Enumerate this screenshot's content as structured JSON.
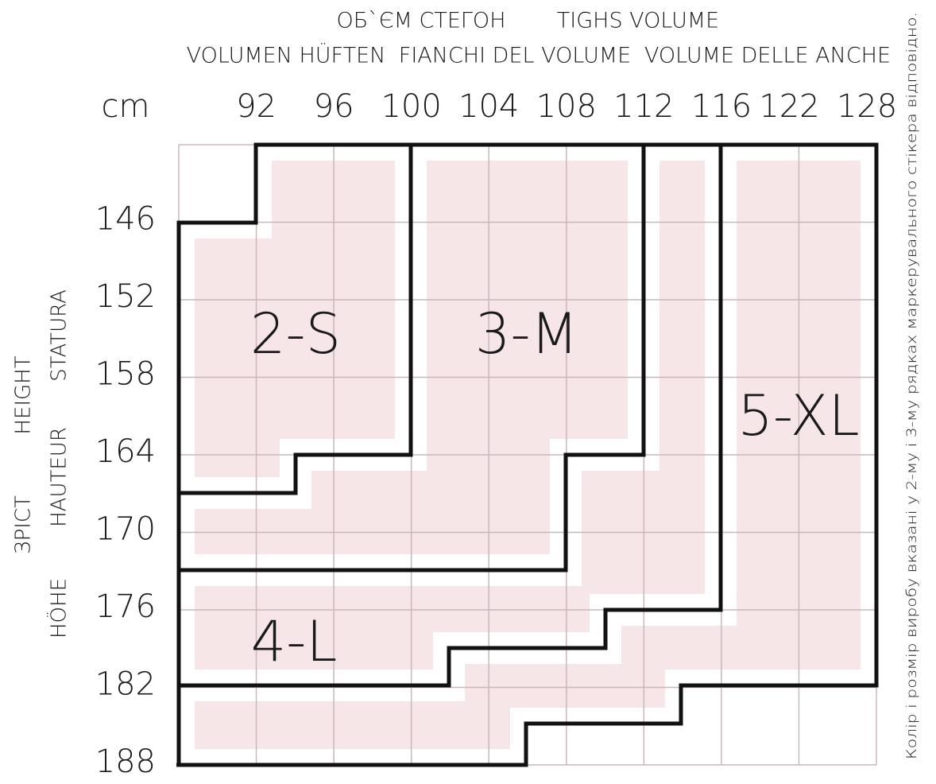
{
  "header": {
    "hip_volume_uk": "ОБ`ЄМ СТЕГОН",
    "hip_volume_en": "TIGHS VOLUME",
    "hip_volume_de": "VOLUMEN HÜFTEN",
    "hip_volume_it": "FIANCHI DEL VOLUME",
    "hip_volume_it2": "VOLUME DELLE ANCHE",
    "unit": "cm"
  },
  "columns": [
    92,
    96,
    100,
    104,
    108,
    112,
    116,
    122,
    128
  ],
  "rows": [
    146,
    152,
    158,
    164,
    170,
    176,
    182,
    188
  ],
  "height_labels": {
    "uk": "ЗРІСТ",
    "en": "HEIGHT",
    "fr": "HAUTEUR",
    "it": "STATURA",
    "de": "HÖHE"
  },
  "sizes": [
    "2-S",
    "3-M",
    "4-L",
    "5-XL"
  ],
  "note": "Колір і розмір виробу вказані у 2-му і 3-му рядках маркерувального стікера відповідно."
}
